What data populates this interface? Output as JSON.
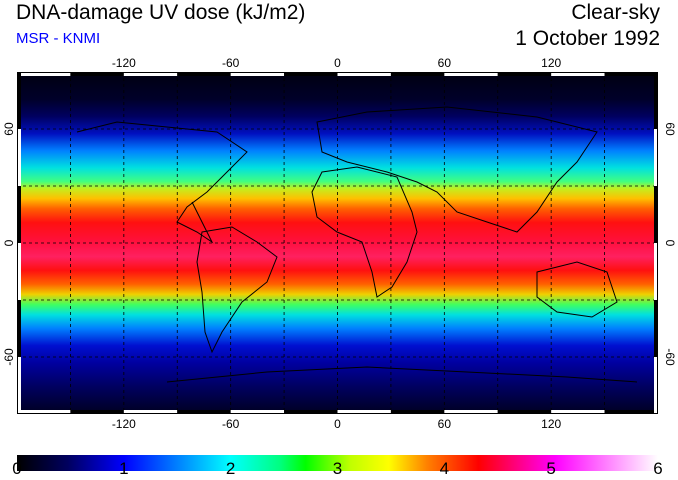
{
  "header": {
    "title": "DNA-damage UV dose (kJ/m2)",
    "subtitle": "MSR - KNMI",
    "condition": "Clear-sky",
    "date": "1 October 1992"
  },
  "map": {
    "lon_labels": [
      "-120",
      "-60",
      "0",
      "60",
      "120"
    ],
    "lat_labels": [
      "60",
      "0",
      "-60"
    ],
    "lon_range": [
      -180,
      180
    ],
    "lat_range": [
      -90,
      90
    ]
  },
  "colorbar": {
    "labels": [
      "0",
      "1",
      "2",
      "3",
      "4",
      "5",
      "6"
    ],
    "min": 0,
    "max": 6,
    "colors": [
      "#000000",
      "#0000ff",
      "#00ffff",
      "#00ff00",
      "#ffff00",
      "#ff0000",
      "#ff00ff",
      "#ffffff"
    ]
  }
}
